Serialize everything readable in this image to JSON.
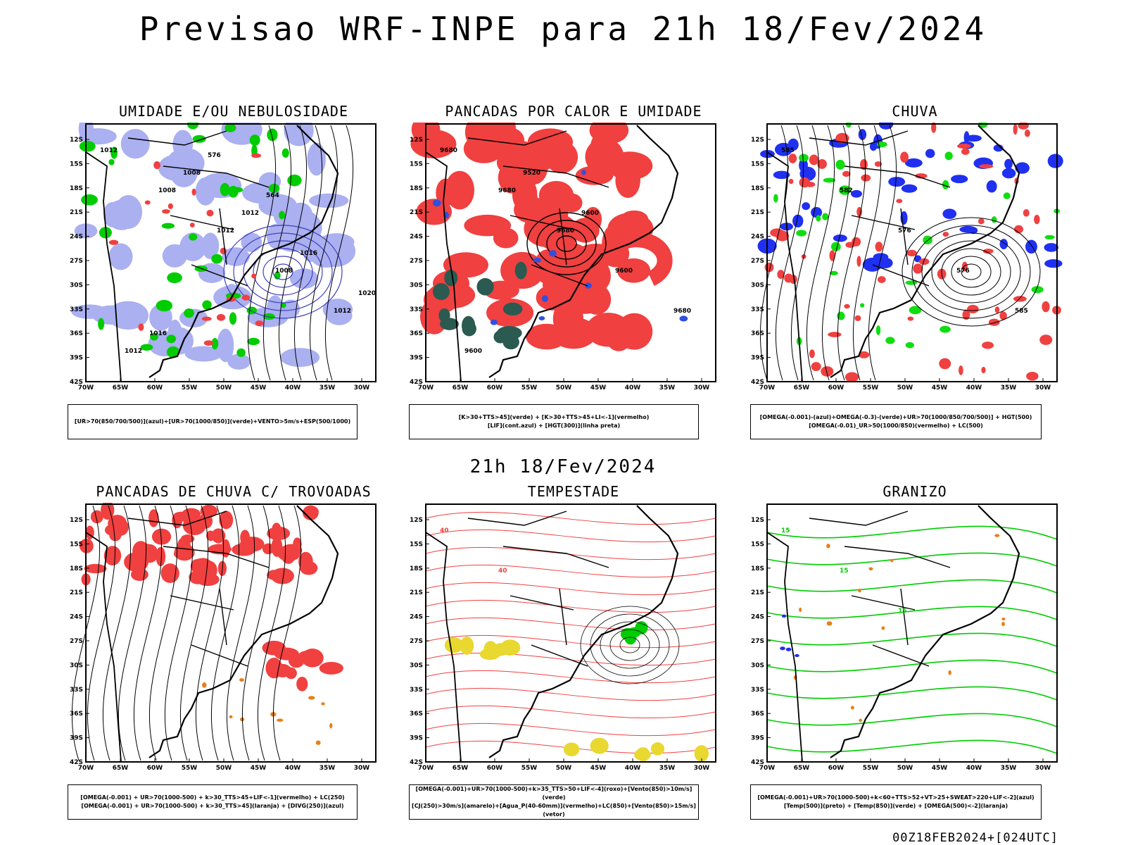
{
  "main_title": "Previsao WRF-INPE  para 21h 18/Fev/2024",
  "mid_title": "21h 18/Fev/2024",
  "footer": "00Z18FEB2024+[024UTC]",
  "lat_labels": [
    "12S",
    "15S",
    "18S",
    "21S",
    "24S",
    "27S",
    "30S",
    "33S",
    "36S",
    "39S",
    "42S"
  ],
  "lon_labels": [
    "70W",
    "65W",
    "60W",
    "55W",
    "50W",
    "45W",
    "40W",
    "35W",
    "30W"
  ],
  "panels": [
    {
      "title": "UMIDADE E/OU NEBULOSIDADE",
      "legend": [
        "[UR>70(850/700/500)](azul)+[UR>70(1000/850)](verde)+VENTO>5m/s+ESP(500/1000)"
      ],
      "isobar_labels": [
        "1012",
        "1008",
        "1012",
        "1008",
        "1012",
        "1012",
        "1008",
        "1012",
        "1016",
        "1020",
        "1016",
        "576",
        "564"
      ]
    },
    {
      "title": "PANCADAS POR CALOR E UMIDADE",
      "legend": [
        "[K>30+TTS>45](verde) + [K>30+TTS>45+LI<-1](vermelho)",
        "[LIF](cont.azul) + [HGT(300)](linha preta)"
      ],
      "isobar_labels": [
        "9680",
        "9680",
        "9680",
        "9600",
        "9680",
        "9600",
        "9520",
        "9600"
      ]
    },
    {
      "title": "CHUVA",
      "legend": [
        "[OMEGA(-0.001)-(azul)+OMEGA(-0.3)-(verde)+UR>70(1000/850/700/500)] + HGT(500)",
        "[OMEGA(-0.01)_UR>50(1000/850)(vermelho) + LC(500)"
      ],
      "isobar_labels": [
        "585",
        "582",
        "576",
        "576",
        "585"
      ]
    },
    {
      "title": "PANCADAS DE CHUVA C/ TROVOADAS",
      "legend": [
        "[OMEGA(-0.001) + UR>70(1000-500) + k>30_TTS>45+LIF<-1](vermelho) + LC(250)",
        "[OMEGA(-0.001) + UR>70(1000-500) + k>30_TTS>45](laranja) + [DIVG(250)](azul)"
      ],
      "isobar_labels": []
    },
    {
      "title": "TEMPESTADE",
      "legend": [
        "[OMEGA(-0.001)+UR>70(1000-500)+k>35_TTS>50+LIF<-4](roxo)+[Vento(850)>10m/s](verde)",
        "[CJ(250)>30m/s](amarelo)+[Agua_P(40-60mm)](vermelho)+LC(850)+[Vento(850)>15m/s](vetor)"
      ],
      "isobar_labels": [
        "40",
        "40"
      ]
    },
    {
      "title": "GRANIZO",
      "legend": [
        "[OMEGA(-0.001)+UR>70(1000-500)+k<60+TTS>52+VT>25+SWEAT>220+LIF<-2](azul)",
        "[Temp(500)](preto) + [Temp(850)](verde) + [OMEGA(500)<-2](laranja)"
      ],
      "isobar_labels": [
        "15",
        "15",
        "15"
      ]
    }
  ],
  "colors": {
    "humidity_blue": "#aab0f0",
    "humidity_green": "#00cc00",
    "convection_red": "#f04040",
    "dark_green": "#2a5a50",
    "contour_blue": "#3050e0",
    "rain_blue": "#2030f0",
    "rain_green": "#10dd10",
    "orange": "#e8801a",
    "yellow": "#e8d830",
    "purple": "#8000c0"
  }
}
